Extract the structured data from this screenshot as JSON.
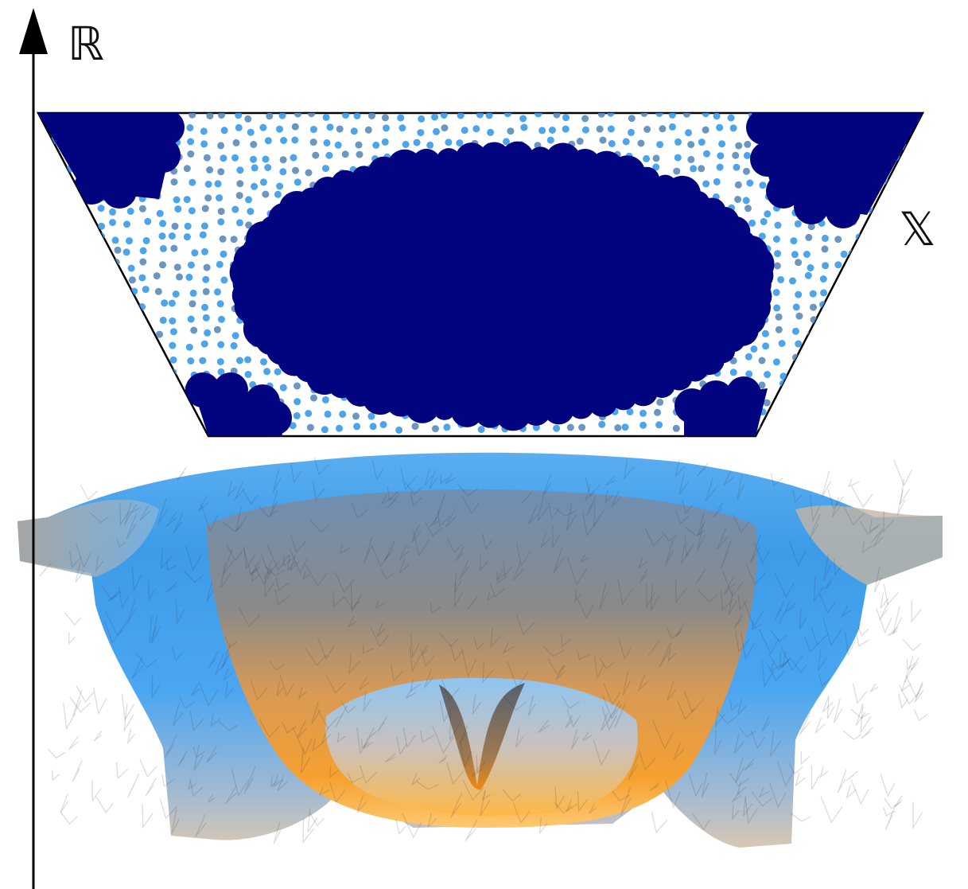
{
  "labels": {
    "y_axis": "ℝ",
    "x_space": "𝕏"
  }
}
